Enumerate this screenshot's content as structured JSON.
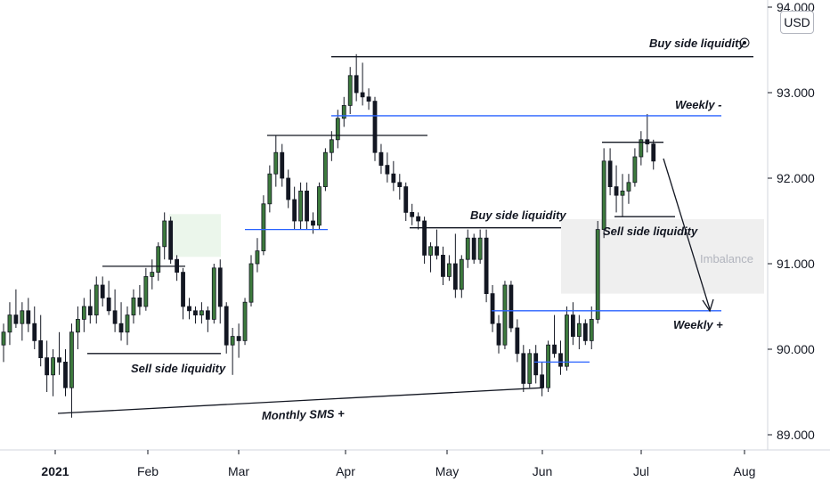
{
  "currency_button": "USD",
  "chart_data": {
    "type": "candlestick",
    "y_axis": {
      "ticks": [
        "94.000",
        "93.000",
        "92.000",
        "91.000",
        "90.000",
        "89.000"
      ],
      "tick_values": [
        94,
        93,
        92,
        91,
        90,
        89
      ],
      "ylim": [
        88.8,
        94.2
      ]
    },
    "x_axis": {
      "labels": [
        "2021",
        "Feb",
        "Mar",
        "Apr",
        "May",
        "Jun",
        "Jul",
        "Aug"
      ]
    },
    "annotations": {
      "buy_side_top": "Buy side liquidity",
      "weekly_minus": "Weekly -",
      "buy_side_mid": "Buy side liquidity",
      "sell_side_right": "Sell side liquidity",
      "imbalance": "Imbalance",
      "weekly_plus": "Weekly +",
      "sell_side_left": "Sell side liquidity",
      "monthly_sms": "Monthly SMS +"
    },
    "levels": {
      "buy_side_top": 93.42,
      "weekly_minus": 92.73,
      "weekly_plus": 90.45,
      "imbalance_zone": [
        90.65,
        91.52
      ],
      "green_zone": [
        91.08,
        91.58
      ]
    },
    "candles": [
      [
        90.05,
        90.3,
        89.85,
        90.2
      ],
      [
        90.2,
        90.55,
        90.05,
        90.4
      ],
      [
        90.4,
        90.7,
        90.25,
        90.3
      ],
      [
        90.3,
        90.55,
        90.1,
        90.45
      ],
      [
        90.45,
        90.6,
        90.2,
        90.3
      ],
      [
        90.3,
        90.5,
        90.0,
        90.1
      ],
      [
        90.1,
        90.4,
        89.8,
        89.9
      ],
      [
        89.9,
        90.1,
        89.5,
        89.7
      ],
      [
        89.7,
        90.0,
        89.45,
        89.9
      ],
      [
        89.9,
        90.2,
        89.7,
        89.85
      ],
      [
        89.85,
        90.0,
        89.45,
        89.55
      ],
      [
        89.55,
        90.3,
        89.2,
        90.2
      ],
      [
        90.2,
        90.5,
        90.0,
        90.35
      ],
      [
        90.35,
        90.6,
        90.2,
        90.5
      ],
      [
        90.5,
        90.7,
        90.3,
        90.4
      ],
      [
        90.4,
        90.85,
        90.3,
        90.75
      ],
      [
        90.75,
        90.85,
        90.5,
        90.6
      ],
      [
        90.6,
        90.8,
        90.4,
        90.45
      ],
      [
        90.45,
        90.7,
        90.2,
        90.3
      ],
      [
        90.3,
        90.55,
        90.1,
        90.2
      ],
      [
        90.2,
        90.5,
        90.05,
        90.4
      ],
      [
        90.4,
        90.7,
        90.3,
        90.6
      ],
      [
        90.6,
        90.75,
        90.4,
        90.5
      ],
      [
        90.5,
        90.95,
        90.45,
        90.85
      ],
      [
        90.85,
        91.05,
        90.7,
        90.9
      ],
      [
        90.9,
        91.25,
        90.8,
        91.2
      ],
      [
        91.2,
        91.6,
        91.05,
        91.5
      ],
      [
        91.5,
        91.55,
        91.0,
        91.05
      ],
      [
        91.05,
        91.1,
        90.8,
        90.9
      ],
      [
        90.9,
        90.95,
        90.35,
        90.5
      ],
      [
        90.5,
        90.6,
        90.35,
        90.45
      ],
      [
        90.45,
        90.5,
        90.3,
        90.4
      ],
      [
        90.4,
        90.55,
        90.3,
        90.45
      ],
      [
        90.45,
        90.5,
        90.2,
        90.35
      ],
      [
        90.35,
        91.0,
        90.3,
        90.95
      ],
      [
        90.95,
        91.05,
        90.3,
        90.5
      ],
      [
        90.5,
        90.55,
        89.95,
        90.05
      ],
      [
        90.05,
        90.25,
        89.7,
        90.15
      ],
      [
        90.15,
        90.3,
        89.9,
        90.1
      ],
      [
        90.1,
        90.6,
        90.05,
        90.55
      ],
      [
        90.55,
        91.1,
        90.5,
        91.0
      ],
      [
        91.0,
        91.3,
        90.9,
        91.15
      ],
      [
        91.15,
        91.8,
        91.1,
        91.7
      ],
      [
        91.7,
        92.15,
        91.6,
        92.05
      ],
      [
        92.05,
        92.5,
        91.9,
        92.3
      ],
      [
        92.3,
        92.4,
        91.9,
        92.0
      ],
      [
        92.0,
        92.1,
        91.65,
        91.75
      ],
      [
        91.75,
        91.9,
        91.4,
        91.5
      ],
      [
        91.5,
        91.95,
        91.4,
        91.85
      ],
      [
        91.85,
        91.95,
        91.4,
        91.5
      ],
      [
        91.5,
        91.6,
        91.35,
        91.45
      ],
      [
        91.45,
        91.95,
        91.4,
        91.9
      ],
      [
        91.9,
        92.35,
        91.85,
        92.3
      ],
      [
        92.3,
        92.55,
        92.2,
        92.45
      ],
      [
        92.45,
        92.8,
        92.35,
        92.7
      ],
      [
        92.7,
        92.95,
        92.6,
        92.85
      ],
      [
        92.85,
        93.3,
        92.75,
        93.2
      ],
      [
        93.2,
        93.45,
        92.9,
        93.0
      ],
      [
        93.0,
        93.35,
        92.85,
        92.95
      ],
      [
        92.95,
        93.05,
        92.8,
        92.9
      ],
      [
        92.9,
        92.95,
        92.2,
        92.3
      ],
      [
        92.3,
        92.4,
        92.05,
        92.15
      ],
      [
        92.15,
        92.3,
        91.95,
        92.05
      ],
      [
        92.05,
        92.2,
        91.85,
        91.95
      ],
      [
        91.95,
        92.05,
        91.75,
        91.9
      ],
      [
        91.9,
        91.95,
        91.5,
        91.6
      ],
      [
        91.6,
        91.7,
        91.45,
        91.55
      ],
      [
        91.55,
        91.6,
        91.4,
        91.5
      ],
      [
        91.5,
        91.55,
        91.0,
        91.1
      ],
      [
        91.1,
        91.25,
        90.9,
        91.2
      ],
      [
        91.2,
        91.4,
        91.05,
        91.1
      ],
      [
        91.1,
        91.2,
        90.75,
        90.85
      ],
      [
        90.85,
        91.1,
        90.8,
        91.0
      ],
      [
        91.0,
        91.35,
        90.6,
        90.7
      ],
      [
        90.7,
        91.1,
        90.6,
        91.05
      ],
      [
        91.05,
        91.4,
        90.95,
        91.3
      ],
      [
        91.3,
        91.35,
        91.0,
        91.05
      ],
      [
        91.05,
        91.4,
        91.0,
        91.3
      ],
      [
        91.3,
        91.4,
        90.55,
        90.65
      ],
      [
        90.65,
        90.75,
        90.2,
        90.3
      ],
      [
        90.3,
        90.4,
        89.95,
        90.05
      ],
      [
        90.05,
        90.8,
        90.0,
        90.75
      ],
      [
        90.75,
        90.8,
        90.2,
        90.25
      ],
      [
        90.25,
        90.35,
        89.85,
        89.95
      ],
      [
        89.95,
        90.05,
        89.5,
        89.6
      ],
      [
        89.6,
        90.0,
        89.55,
        89.95
      ],
      [
        89.95,
        90.05,
        89.6,
        89.7
      ],
      [
        89.7,
        89.85,
        89.45,
        89.55
      ],
      [
        89.55,
        90.1,
        89.5,
        90.05
      ],
      [
        90.05,
        90.4,
        89.9,
        89.95
      ],
      [
        89.95,
        90.1,
        89.7,
        89.8
      ],
      [
        89.8,
        90.5,
        89.75,
        90.4
      ],
      [
        90.4,
        90.55,
        90.05,
        90.15
      ],
      [
        90.15,
        90.4,
        90.0,
        90.3
      ],
      [
        90.3,
        90.35,
        90.05,
        90.1
      ],
      [
        90.1,
        90.5,
        90.0,
        90.35
      ],
      [
        90.35,
        91.5,
        90.3,
        91.4
      ],
      [
        91.4,
        92.35,
        91.3,
        92.2
      ],
      [
        92.2,
        92.35,
        91.8,
        91.9
      ],
      [
        91.9,
        92.15,
        91.6,
        91.8
      ],
      [
        91.8,
        92.05,
        91.55,
        91.85
      ],
      [
        91.85,
        92.05,
        91.7,
        91.95
      ],
      [
        91.95,
        92.35,
        91.9,
        92.25
      ],
      [
        92.25,
        92.55,
        92.15,
        92.45
      ],
      [
        92.45,
        92.75,
        92.3,
        92.4
      ],
      [
        92.4,
        92.45,
        92.1,
        92.2
      ]
    ]
  }
}
